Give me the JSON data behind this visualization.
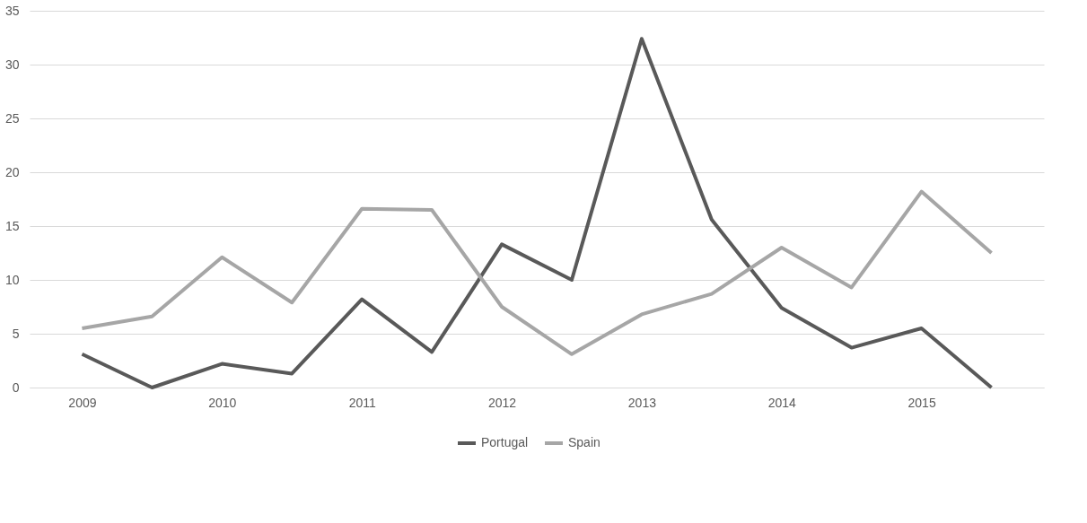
{
  "chart_data": {
    "type": "line",
    "categories": [
      "2009",
      null,
      "2010",
      null,
      "2011",
      null,
      "2012",
      null,
      "2013",
      null,
      "2014",
      null,
      "2015",
      null
    ],
    "series": [
      {
        "name": "Portugal",
        "color": "#595959",
        "values": [
          3.1,
          0,
          2.2,
          1.3,
          8.2,
          3.3,
          13.3,
          10,
          32.4,
          15.6,
          7.4,
          3.7,
          5.5,
          0
        ]
      },
      {
        "name": "Spain",
        "color": "#a6a6a6",
        "values": [
          5.5,
          6.6,
          12.1,
          7.9,
          16.6,
          16.5,
          7.5,
          3.1,
          6.8,
          8.7,
          13,
          9.3,
          18.2,
          12.5
        ]
      }
    ],
    "ylim": [
      0,
      35
    ],
    "yticks": [
      0,
      5,
      10,
      15,
      20,
      25,
      30,
      35
    ],
    "grid": "y",
    "legend": "bottom",
    "marker": "none",
    "line_style": "solid"
  }
}
